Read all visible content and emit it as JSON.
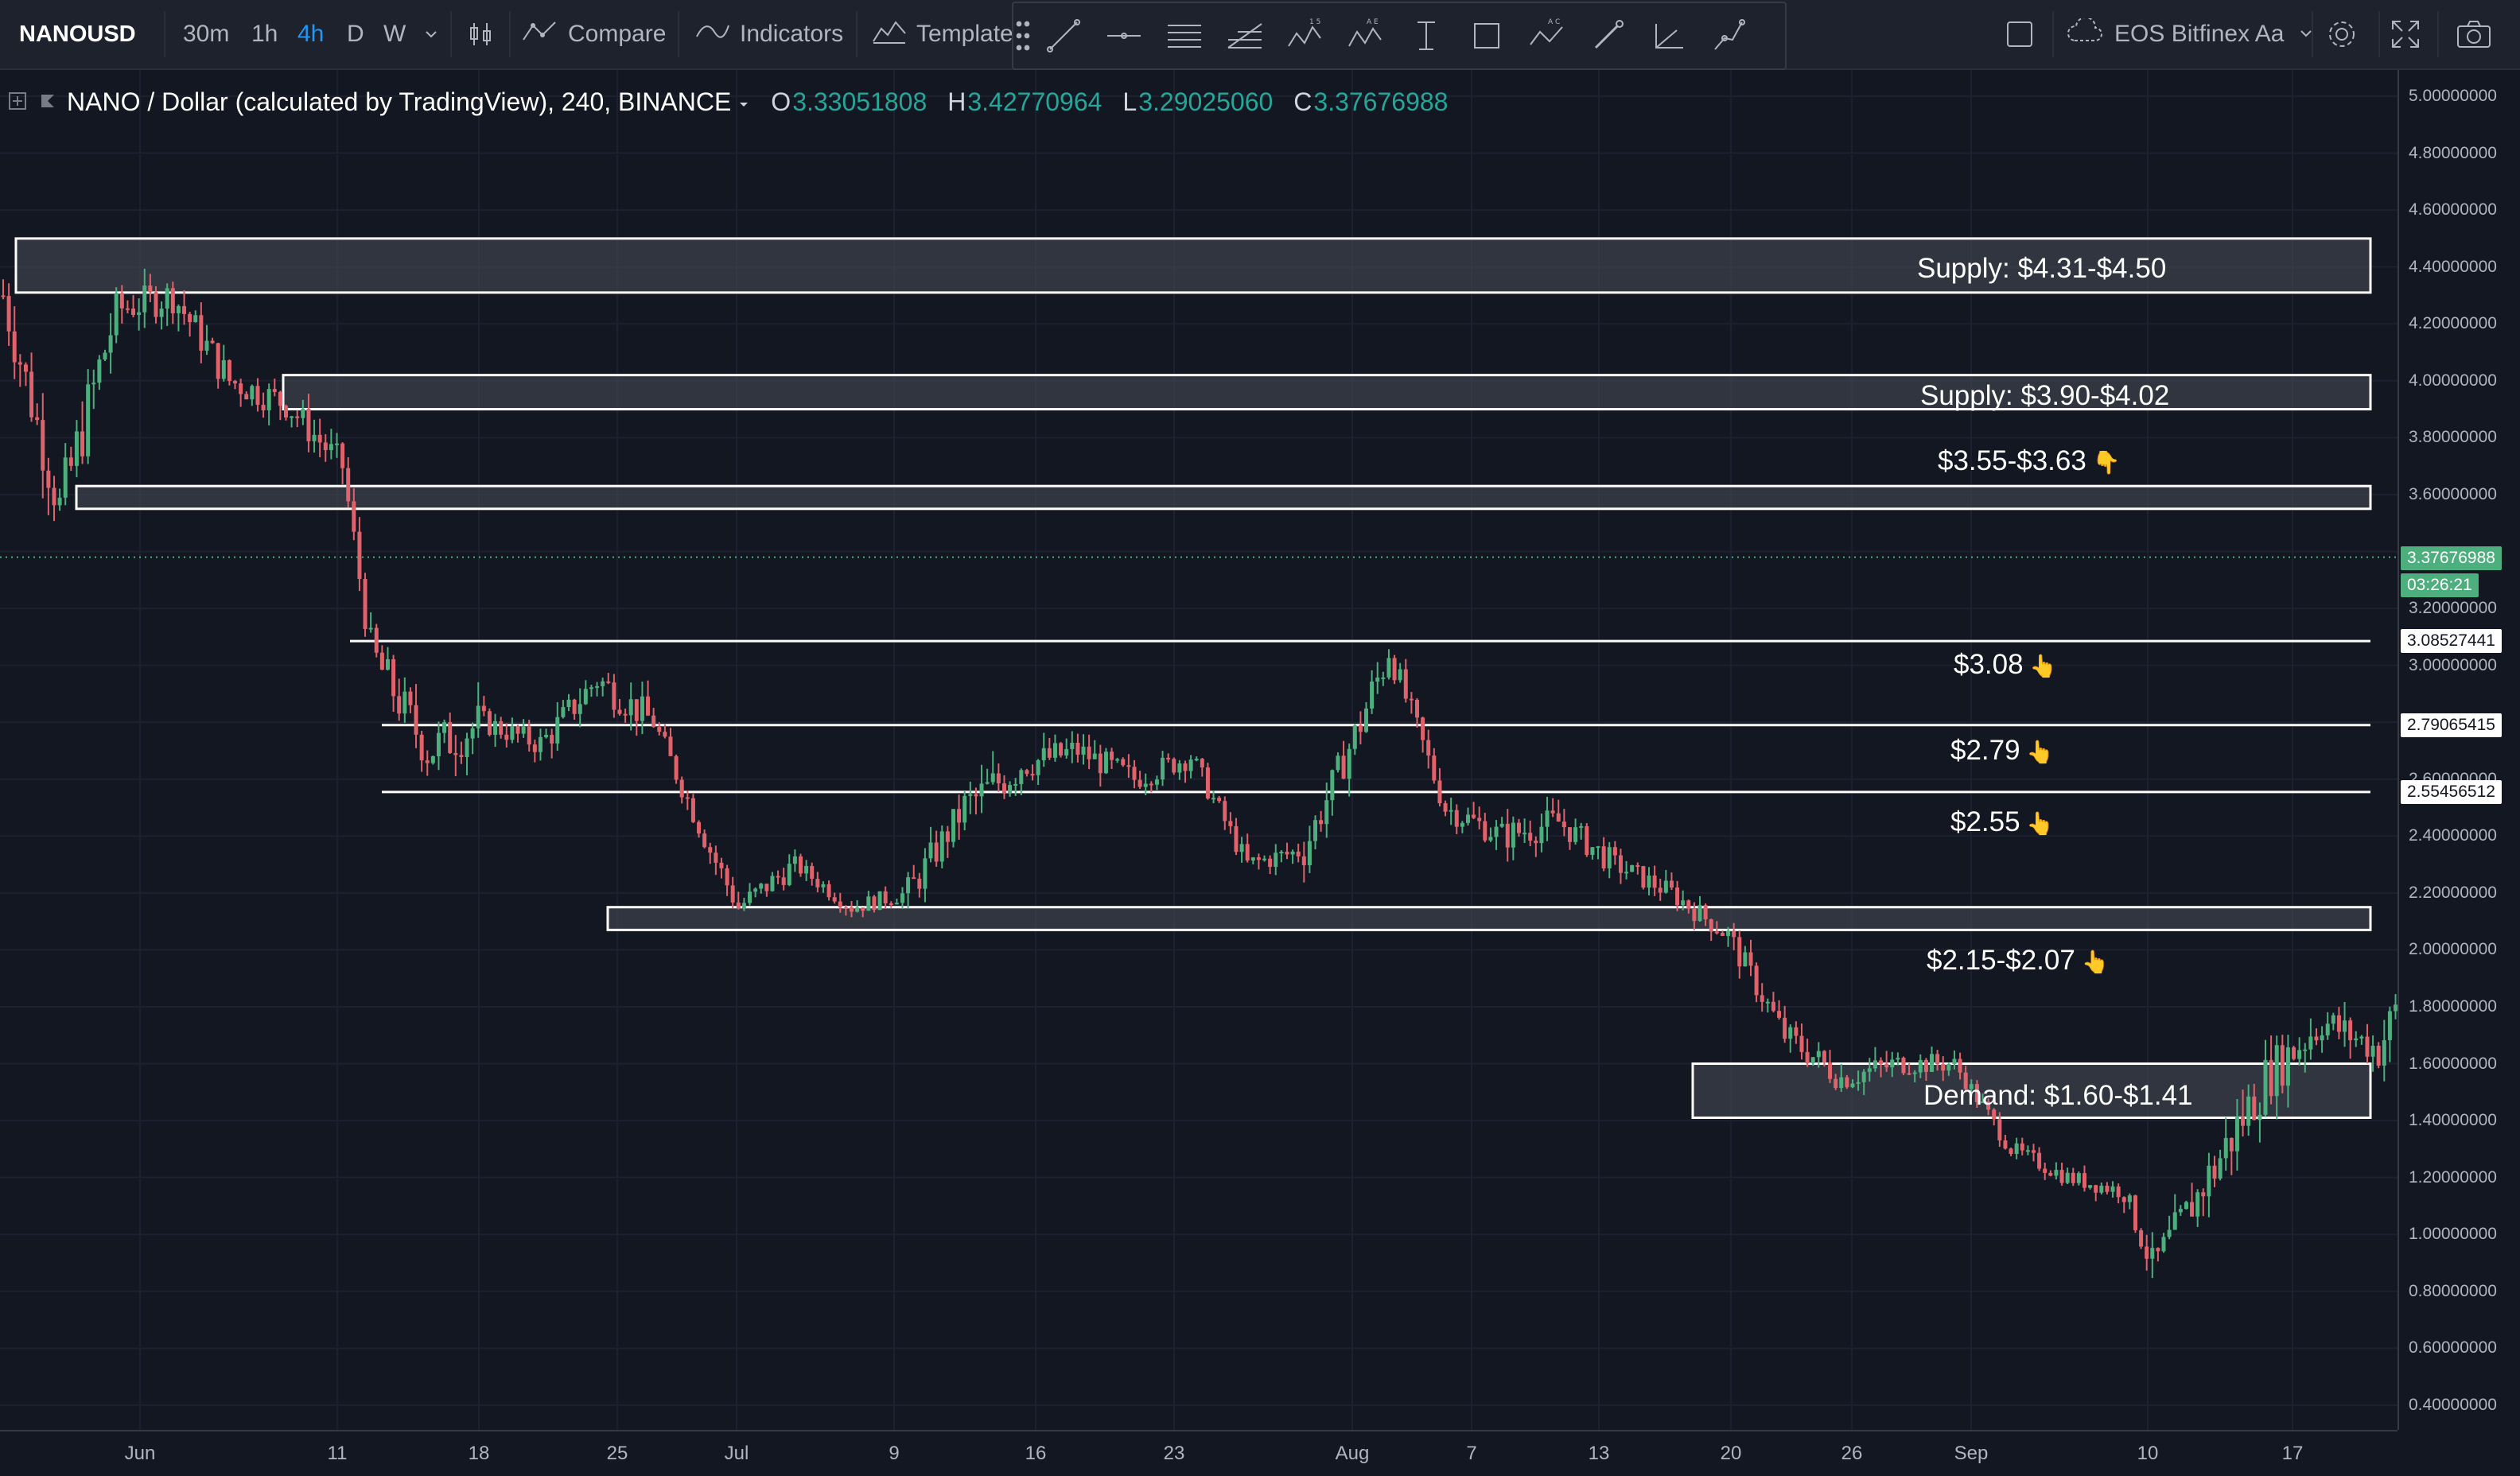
{
  "toolbar": {
    "symbol": "NANOUSD",
    "intervals": [
      "30m",
      "1h",
      "4h",
      "D",
      "W"
    ],
    "active_interval": "4h",
    "compare_label": "Compare",
    "indicators_label": "Indicators",
    "templates_label": "Template",
    "drawing_tools": [
      "trend-line-icon",
      "horizontal-ray-icon",
      "parallel-channel-icon",
      "fib-retracement-icon",
      "xabcd-pattern-icon",
      "abcde-pattern-icon",
      "text-tool-icon",
      "rectangle-icon",
      "abc-pattern-icon",
      "brush-icon",
      "angle-tool-icon",
      "path-icon"
    ],
    "layout_label": "EOS Bitfinex Aa"
  },
  "legend": {
    "title": "NANO / Dollar (calculated by TradingView), 240, BINANCE",
    "open_label": "O",
    "open_value": "3.33051808",
    "high_label": "H",
    "high_value": "3.42770964",
    "low_label": "L",
    "low_value": "3.29025060",
    "close_label": "C",
    "close_value": "3.37676988"
  },
  "price_axis": {
    "ticks": [
      "5.00000000",
      "4.80000000",
      "4.60000000",
      "4.40000000",
      "4.20000000",
      "4.00000000",
      "3.80000000",
      "3.60000000",
      "3.20000000",
      "3.00000000",
      "2.60000000",
      "2.40000000",
      "2.20000000",
      "2.00000000",
      "1.80000000",
      "1.60000000",
      "1.40000000",
      "1.20000000",
      "1.00000000",
      "0.80000000",
      "0.60000000",
      "0.40000000"
    ],
    "last_price": "3.37676988",
    "countdown": "03:26:21",
    "line_tags": [
      "3.08527441",
      "2.79065415",
      "2.55456512"
    ]
  },
  "time_axis": [
    "Jun",
    "11",
    "18",
    "25",
    "Jul",
    "9",
    "16",
    "23",
    "Aug",
    "7",
    "13",
    "20",
    "26",
    "Sep",
    "10",
    "17"
  ],
  "annotations": {
    "supply_1": "Supply: $4.31-$4.50",
    "supply_2": "Supply: $3.90-$4.02",
    "zone_355": "$3.55-$3.63",
    "level_308": "$3.08",
    "level_279": "$2.79",
    "level_255": "$2.55",
    "zone_215": "$2.15-$2.07",
    "demand": "Demand: $1.60-$1.41"
  },
  "colors": {
    "background": "#131722",
    "up_candle": "#4caf7d",
    "down_candle": "#e0626a",
    "accent": "#2196f3",
    "zone_fill": "#4a4e5a"
  },
  "chart_data": {
    "type": "candlestick",
    "title": "NANO / Dollar (calculated by TradingView), 240, BINANCE",
    "xlabel": "",
    "ylabel": "",
    "ylim": [
      0.4,
      5.0
    ],
    "x": [
      "2018-05-29",
      "2018-05-31",
      "2018-06-02",
      "2018-06-04",
      "2018-06-06",
      "2018-06-08",
      "2018-06-10",
      "2018-06-11",
      "2018-06-13",
      "2018-06-15",
      "2018-06-17",
      "2018-06-19",
      "2018-06-21",
      "2018-06-23",
      "2018-06-24",
      "2018-06-26",
      "2018-06-28",
      "2018-06-30",
      "2018-07-02",
      "2018-07-04",
      "2018-07-06",
      "2018-07-08",
      "2018-07-10",
      "2018-07-12",
      "2018-07-14",
      "2018-07-16",
      "2018-07-17",
      "2018-07-19",
      "2018-07-21",
      "2018-07-23",
      "2018-07-25",
      "2018-07-27",
      "2018-07-29",
      "2018-07-31",
      "2018-08-02",
      "2018-08-04",
      "2018-08-06",
      "2018-08-08",
      "2018-08-10",
      "2018-08-12",
      "2018-08-13",
      "2018-08-15",
      "2018-08-17",
      "2018-08-19",
      "2018-08-21",
      "2018-08-23",
      "2018-08-25",
      "2018-08-26"
    ],
    "close": [
      4.3,
      3.55,
      4.25,
      4.3,
      4.0,
      3.92,
      3.7,
      3.05,
      2.7,
      2.8,
      2.72,
      2.95,
      2.8,
      2.35,
      2.15,
      2.3,
      2.15,
      2.2,
      2.5,
      2.65,
      2.7,
      2.6,
      2.68,
      2.3,
      2.35,
      2.8,
      3.05,
      2.5,
      2.4,
      2.45,
      2.3,
      2.2,
      2.05,
      1.7,
      1.55,
      1.6,
      1.6,
      1.3,
      1.2,
      1.15,
      0.88,
      1.2,
      1.55,
      1.75,
      1.65,
      2.1,
      2.8,
      3.38
    ],
    "high": [
      4.5,
      4.35,
      4.35,
      4.38,
      4.1,
      4.05,
      3.92,
      3.2,
      3.15,
      2.85,
      2.8,
      3.15,
      2.9,
      2.45,
      2.35,
      2.35,
      2.25,
      2.3,
      2.6,
      2.8,
      2.75,
      2.75,
      2.75,
      2.5,
      2.45,
      2.85,
      3.12,
      2.6,
      2.5,
      2.55,
      2.4,
      2.3,
      2.15,
      1.85,
      1.7,
      1.7,
      1.7,
      1.4,
      1.3,
      1.2,
      1.1,
      1.35,
      2.05,
      1.95,
      1.95,
      2.2,
      3.0,
      3.82
    ],
    "low": [
      4.25,
      3.45,
      3.95,
      4.05,
      3.7,
      3.8,
      3.5,
      2.95,
      2.45,
      2.55,
      2.6,
      2.7,
      2.65,
      2.2,
      2.05,
      2.15,
      2.1,
      2.1,
      2.1,
      2.4,
      2.5,
      2.45,
      2.55,
      2.25,
      2.25,
      2.3,
      2.75,
      2.4,
      2.15,
      2.25,
      2.15,
      2.1,
      1.9,
      1.55,
      1.4,
      1.45,
      1.5,
      1.25,
      1.1,
      1.05,
      0.75,
      0.85,
      1.4,
      1.6,
      1.55,
      1.7,
      2.2,
      2.85
    ],
    "horizontal_levels": [
      3.085,
      2.79,
      2.555
    ],
    "zones": [
      [
        4.31,
        4.5
      ],
      [
        3.9,
        4.02
      ],
      [
        3.55,
        3.63
      ],
      [
        2.07,
        2.15
      ],
      [
        1.41,
        1.6
      ]
    ]
  }
}
